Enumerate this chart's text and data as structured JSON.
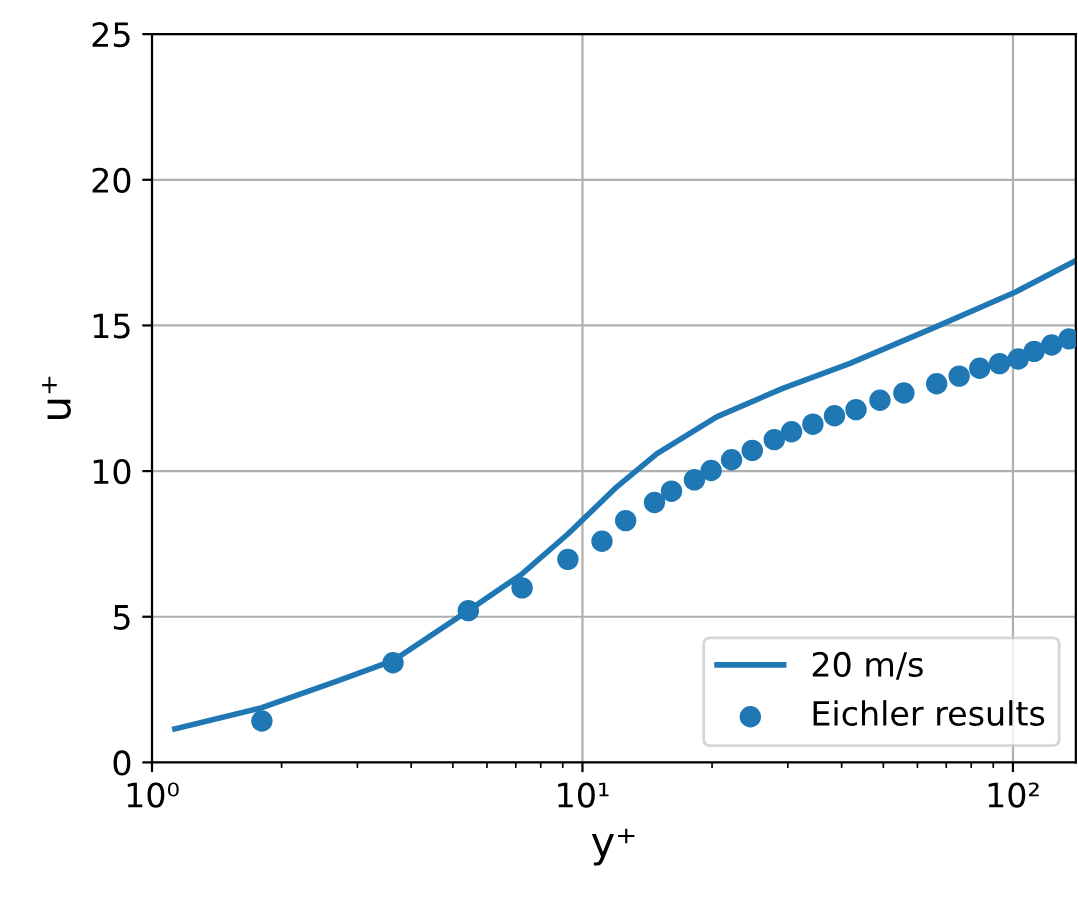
{
  "chart_data": {
    "type": "line",
    "xlabel": "y⁺",
    "ylabel": "u⁺",
    "log": "x",
    "xlim": [
      1,
      140
    ],
    "ylim": [
      0,
      25
    ],
    "xticks": [
      {
        "value": 1,
        "label": "10⁰"
      },
      {
        "value": 10,
        "label": "10¹"
      },
      {
        "value": 100,
        "label": "10²"
      }
    ],
    "yticks": [
      0,
      5,
      10,
      15,
      20,
      25
    ],
    "grid": true,
    "legend": "bottom right",
    "series": [
      {
        "name": "20 m/s",
        "color": "#1f77b4",
        "marker": "none",
        "line_style": "solid",
        "x": [
          1.13,
          1.8,
          2.7,
          3.63,
          5.43,
          7.24,
          9.25,
          12.0,
          14.9,
          20.5,
          29.2,
          41.7,
          66.2,
          101.4,
          139
        ],
        "values": [
          1.15,
          1.88,
          2.8,
          3.49,
          5.21,
          6.47,
          7.84,
          9.45,
          10.6,
          11.86,
          12.84,
          13.69,
          14.95,
          16.15,
          17.2
        ]
      },
      {
        "name": "Eichler results",
        "type": "scatter",
        "color": "#1f77b4",
        "marker": "circle",
        "x": [
          1.8,
          3.63,
          5.43,
          7.24,
          9.25,
          11.1,
          12.6,
          14.7,
          16.1,
          18.2,
          19.9,
          22.2,
          24.8,
          27.9,
          30.6,
          34.3,
          38.5,
          43.2,
          49.1,
          55.8,
          66.5,
          75.0,
          83.7,
          93.1,
          102.9,
          112,
          123,
          135
        ],
        "values": [
          1.42,
          3.42,
          5.21,
          5.99,
          6.97,
          7.59,
          8.3,
          8.92,
          9.31,
          9.7,
          10.02,
          10.39,
          10.71,
          11.08,
          11.35,
          11.61,
          11.9,
          12.11,
          12.43,
          12.68,
          13.0,
          13.26,
          13.53,
          13.69,
          13.85,
          14.11,
          14.33,
          14.54
        ]
      }
    ]
  }
}
